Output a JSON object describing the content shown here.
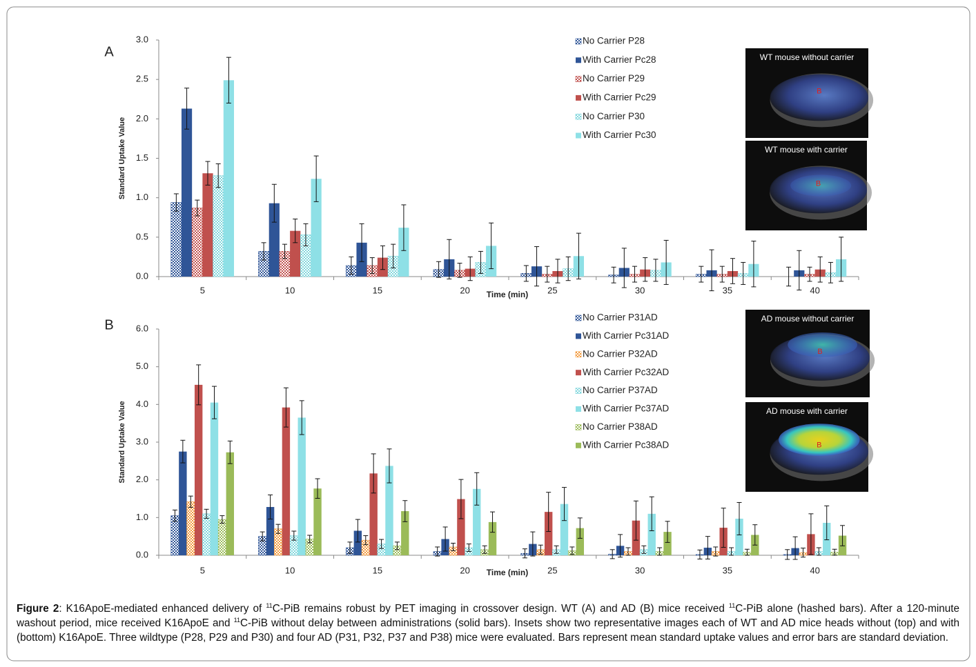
{
  "chart_data": [
    {
      "type": "bar",
      "panel": "A",
      "y_label": "Standard Uptake Value",
      "x_label": "Time (min)",
      "categories": [
        "5",
        "10",
        "15",
        "20",
        "25",
        "30",
        "35",
        "40"
      ],
      "ylim": [
        0,
        3
      ],
      "yticks": [
        {
          "value": 0,
          "label": "0.0"
        },
        0.5,
        {
          "value": 1,
          "label": "1.0"
        },
        1.5,
        {
          "value": 2,
          "label": "2.0"
        },
        2.5,
        {
          "value": 3,
          "label": "3.0"
        }
      ],
      "grid": false,
      "series": [
        {
          "name": "No Carrier P28",
          "color": "#2f5597",
          "hatched": true,
          "values": [
            0.94,
            0.32,
            0.14,
            0.09,
            0.04,
            0.02,
            0.03,
            0
          ],
          "errors": [
            0.11,
            0.11,
            0.11,
            0.1,
            0.1,
            0.1,
            0.1,
            0.12
          ]
        },
        {
          "name": "With Carrier Pc28",
          "color": "#2f5597",
          "hatched": false,
          "values": [
            2.13,
            0.93,
            0.43,
            0.22,
            0.13,
            0.11,
            0.08,
            0.08
          ],
          "errors": [
            0.26,
            0.24,
            0.24,
            0.25,
            0.25,
            0.25,
            0.26,
            0.25
          ]
        },
        {
          "name": "No Carrier P29",
          "color": "#c0504d",
          "hatched": true,
          "values": [
            0.87,
            0.32,
            0.14,
            0.08,
            0.03,
            0.03,
            0.03,
            0.03
          ],
          "errors": [
            0.1,
            0.09,
            0.1,
            0.09,
            0.1,
            0.1,
            0.1,
            0.09
          ]
        },
        {
          "name": "With Carrier Pc29",
          "color": "#c0504d",
          "hatched": false,
          "values": [
            1.31,
            0.58,
            0.24,
            0.1,
            0.07,
            0.09,
            0.07,
            0.09
          ],
          "errors": [
            0.15,
            0.15,
            0.15,
            0.15,
            0.15,
            0.15,
            0.16,
            0.16
          ]
        },
        {
          "name": "No Carrier P30",
          "color": "#7fd6dc",
          "hatched": true,
          "values": [
            1.28,
            0.53,
            0.26,
            0.18,
            0.1,
            0.08,
            0.04,
            0.05
          ],
          "errors": [
            0.15,
            0.14,
            0.15,
            0.14,
            0.15,
            0.14,
            0.14,
            0.13
          ]
        },
        {
          "name": "With Carrier Pc30",
          "color": "#8ee0e6",
          "hatched": false,
          "values": [
            2.49,
            1.24,
            0.62,
            0.39,
            0.26,
            0.18,
            0.16,
            0.22
          ],
          "errors": [
            0.29,
            0.29,
            0.29,
            0.29,
            0.29,
            0.28,
            0.29,
            0.28
          ]
        }
      ],
      "insets": [
        {
          "label": "WT mouse  without carrier",
          "marker": "B"
        },
        {
          "label": "WT mouse  with carrier",
          "marker": "B"
        }
      ]
    },
    {
      "type": "bar",
      "panel": "B",
      "y_label": "Standard Uptake Value",
      "x_label": "Time (min)",
      "categories": [
        "5",
        "10",
        "15",
        "20",
        "25",
        "30",
        "35",
        "40"
      ],
      "ylim": [
        0,
        6
      ],
      "yticks": [
        {
          "value": 0,
          "label": "0.0"
        },
        {
          "value": 1,
          "label": "1.0"
        },
        {
          "value": 2,
          "label": "2.0"
        },
        {
          "value": 3,
          "label": "3.0"
        },
        {
          "value": 4,
          "label": "4.0"
        },
        {
          "value": 5,
          "label": "5.0"
        },
        {
          "value": 6,
          "label": "6.0"
        }
      ],
      "grid": false,
      "series": [
        {
          "name": "No Carrier P31AD",
          "color": "#2f5597",
          "hatched": true,
          "values": [
            1.05,
            0.5,
            0.2,
            0.1,
            0.05,
            0.03,
            0.02,
            0.02
          ],
          "errors": [
            0.15,
            0.12,
            0.15,
            0.12,
            0.12,
            0.12,
            0.12,
            0.13
          ]
        },
        {
          "name": "With Carrier Pc31AD",
          "color": "#2f5597",
          "hatched": false,
          "values": [
            2.75,
            1.28,
            0.65,
            0.43,
            0.3,
            0.25,
            0.2,
            0.19
          ],
          "errors": [
            0.3,
            0.32,
            0.3,
            0.32,
            0.32,
            0.3,
            0.3,
            0.3
          ]
        },
        {
          "name": "No Carrier P32AD",
          "color": "#f39a3c",
          "hatched": true,
          "values": [
            1.42,
            0.7,
            0.4,
            0.22,
            0.15,
            0.1,
            0.1,
            0.07
          ],
          "errors": [
            0.15,
            0.12,
            0.12,
            0.1,
            0.12,
            0.1,
            0.12,
            0.12
          ]
        },
        {
          "name": "With Carrier Pc32AD",
          "color": "#c0504d",
          "hatched": false,
          "values": [
            4.52,
            3.92,
            2.17,
            1.49,
            1.15,
            0.92,
            0.73,
            0.56
          ],
          "errors": [
            0.53,
            0.52,
            0.52,
            0.52,
            0.52,
            0.52,
            0.52,
            0.54
          ]
        },
        {
          "name": "No Carrier P37AD",
          "color": "#7fd6dc",
          "hatched": true,
          "values": [
            1.1,
            0.52,
            0.3,
            0.2,
            0.15,
            0.15,
            0.1,
            0.1
          ],
          "errors": [
            0.12,
            0.12,
            0.12,
            0.1,
            0.1,
            0.1,
            0.1,
            0.1
          ]
        },
        {
          "name": "With Carrier Pc37AD",
          "color": "#8ee0e6",
          "hatched": false,
          "values": [
            4.05,
            3.65,
            2.37,
            1.76,
            1.36,
            1.1,
            0.97,
            0.86
          ],
          "errors": [
            0.43,
            0.45,
            0.45,
            0.43,
            0.44,
            0.45,
            0.43,
            0.45
          ]
        },
        {
          "name": "No Carrier P38AD",
          "color": "#9bbb59",
          "hatched": true,
          "values": [
            0.95,
            0.43,
            0.25,
            0.15,
            0.12,
            0.1,
            0.08,
            0.08
          ],
          "errors": [
            0.1,
            0.1,
            0.1,
            0.1,
            0.1,
            0.1,
            0.08,
            0.08
          ]
        },
        {
          "name": "With Carrier Pc38AD",
          "color": "#9bbb59",
          "hatched": false,
          "values": [
            2.73,
            1.77,
            1.17,
            0.88,
            0.72,
            0.62,
            0.54,
            0.52
          ],
          "errors": [
            0.3,
            0.26,
            0.28,
            0.27,
            0.27,
            0.28,
            0.27,
            0.27
          ]
        }
      ],
      "insets": [
        {
          "label": "AD mouse without carrier",
          "marker": "B"
        },
        {
          "label": "AD mouse with carrier",
          "marker": "B"
        }
      ]
    }
  ],
  "caption": [
    {
      "text": "Figure 2",
      "style": "bold"
    },
    {
      "text": ": K16ApoE-mediated enhanced delivery of ",
      "style": "plain"
    },
    {
      "text": "11",
      "style": "sup"
    },
    {
      "text": "C-PiB remains robust by PET imaging in crossover design. WT (A) and AD (B) mice received ",
      "style": "plain"
    },
    {
      "text": "11",
      "style": "sup"
    },
    {
      "text": "C-PiB alone (hashed bars). After a 120-minute washout period, mice received K16ApoE and ",
      "style": "plain"
    },
    {
      "text": "11",
      "style": "sup"
    },
    {
      "text": "C-PiB without delay between administrations (solid bars). Insets show two representative images each of WT and AD mice heads without (top) and with (bottom) K16ApoE. Three wildtype (P28, P29 and P30) and four AD (P31, P32, P37 and P38) mice were evaluated. Bars represent mean standard uptake values and error bars are standard deviation.",
      "style": "plain"
    }
  ]
}
